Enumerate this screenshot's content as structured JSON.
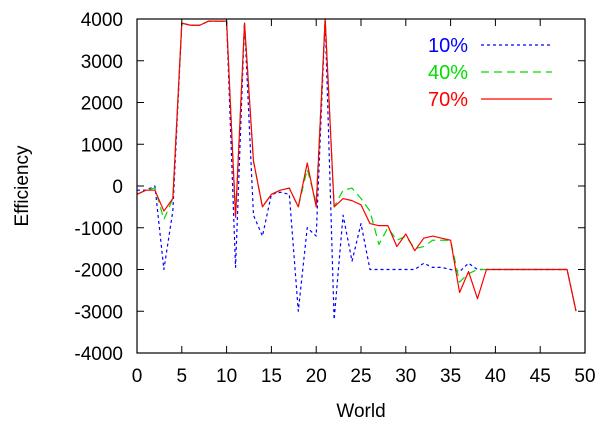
{
  "chart_data": {
    "type": "line",
    "xlabel": "World",
    "ylabel": "Efficiency",
    "xlim": [
      0,
      50
    ],
    "ylim": [
      -4000,
      4000
    ],
    "xticks": [
      0,
      5,
      10,
      15,
      20,
      25,
      30,
      35,
      40,
      45,
      50
    ],
    "yticks": [
      -4000,
      -3000,
      -2000,
      -1000,
      0,
      1000,
      2000,
      3000,
      4000
    ],
    "grid": false,
    "legend_position": "top-right",
    "x": [
      0,
      1,
      2,
      3,
      4,
      5,
      6,
      7,
      8,
      9,
      10,
      11,
      12,
      13,
      14,
      15,
      16,
      17,
      18,
      19,
      20,
      21,
      22,
      23,
      24,
      25,
      26,
      27,
      28,
      29,
      30,
      31,
      32,
      33,
      34,
      35,
      36,
      37,
      38,
      39,
      40,
      41,
      42,
      43,
      44,
      45,
      46,
      47,
      48,
      49
    ],
    "series": [
      {
        "name": "10%",
        "color": "#0000ff",
        "dash": "dotted",
        "values": [
          -100,
          -100,
          0,
          -2000,
          -600,
          3900,
          3850,
          3850,
          3950,
          3950,
          3950,
          -1950,
          3900,
          -700,
          -1200,
          -200,
          -150,
          -200,
          -3000,
          -1000,
          -1200,
          4000,
          -3200,
          -700,
          -1800,
          -900,
          -2000,
          -2000,
          -2000,
          -2000,
          -2000,
          -2000,
          -1850,
          -1950,
          -1950,
          -2000,
          -2050,
          -1850,
          -2000,
          -2000,
          -2000,
          -2000,
          -2000,
          -2000,
          -2000,
          -2000,
          -2000,
          -2000,
          -2000,
          -3000
        ]
      },
      {
        "name": "40%",
        "color": "#00dd00",
        "dash": "dashed",
        "values": [
          -200,
          -100,
          -50,
          -800,
          -300,
          3900,
          3850,
          3850,
          3950,
          3950,
          3950,
          -700,
          3900,
          600,
          -500,
          -200,
          -100,
          -50,
          -500,
          400,
          -400,
          4000,
          -500,
          -100,
          -50,
          -300,
          -600,
          -1400,
          -1000,
          -1300,
          -1200,
          -1500,
          -1450,
          -1300,
          -1300,
          -1300,
          -2300,
          -2100,
          -2000,
          -2000,
          -2000,
          -2000,
          -2000,
          -2000,
          -2000,
          -2000,
          -2000,
          -2000,
          -2000,
          -3000
        ]
      },
      {
        "name": "70%",
        "color": "#ff0000",
        "dash": "solid",
        "values": [
          -200,
          -100,
          -100,
          -600,
          -300,
          3900,
          3850,
          3850,
          3950,
          3950,
          3950,
          -750,
          3900,
          600,
          -500,
          -200,
          -100,
          -50,
          -500,
          550,
          -500,
          4000,
          -500,
          -300,
          -350,
          -450,
          -900,
          -950,
          -950,
          -1450,
          -1150,
          -1550,
          -1250,
          -1200,
          -1250,
          -1300,
          -2550,
          -2050,
          -2700,
          -2000,
          -2000,
          -2000,
          -2000,
          -2000,
          -2000,
          -2000,
          -2000,
          -2000,
          -2000,
          -3000
        ]
      }
    ]
  }
}
